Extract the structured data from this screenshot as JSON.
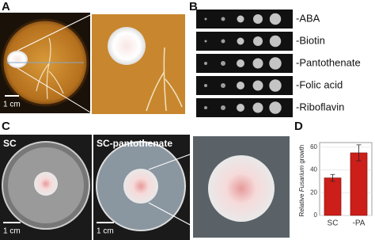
{
  "panels": {
    "a": {
      "label": "A",
      "scale": "1 cm"
    },
    "b": {
      "label": "B",
      "rows": [
        "-ABA",
        "-Biotin",
        "-Pantothenate",
        "-Folic acid",
        "-Riboflavin"
      ]
    },
    "c": {
      "label": "C",
      "left": "SC",
      "middle": "SC-pantothenate",
      "scale_left": "1 cm",
      "scale_mid": "1 cm"
    },
    "d": {
      "label": "D"
    }
  },
  "chart_data": {
    "type": "bar",
    "y_label": [
      "Relative ",
      "Fusarium",
      " growth"
    ],
    "categories": [
      "SC",
      "-PA"
    ],
    "values": [
      33,
      55
    ],
    "errors": [
      3,
      7
    ],
    "color": "#cc1f1a",
    "ylim": [
      0,
      64
    ],
    "yticks": [
      0,
      20,
      40,
      60
    ]
  }
}
